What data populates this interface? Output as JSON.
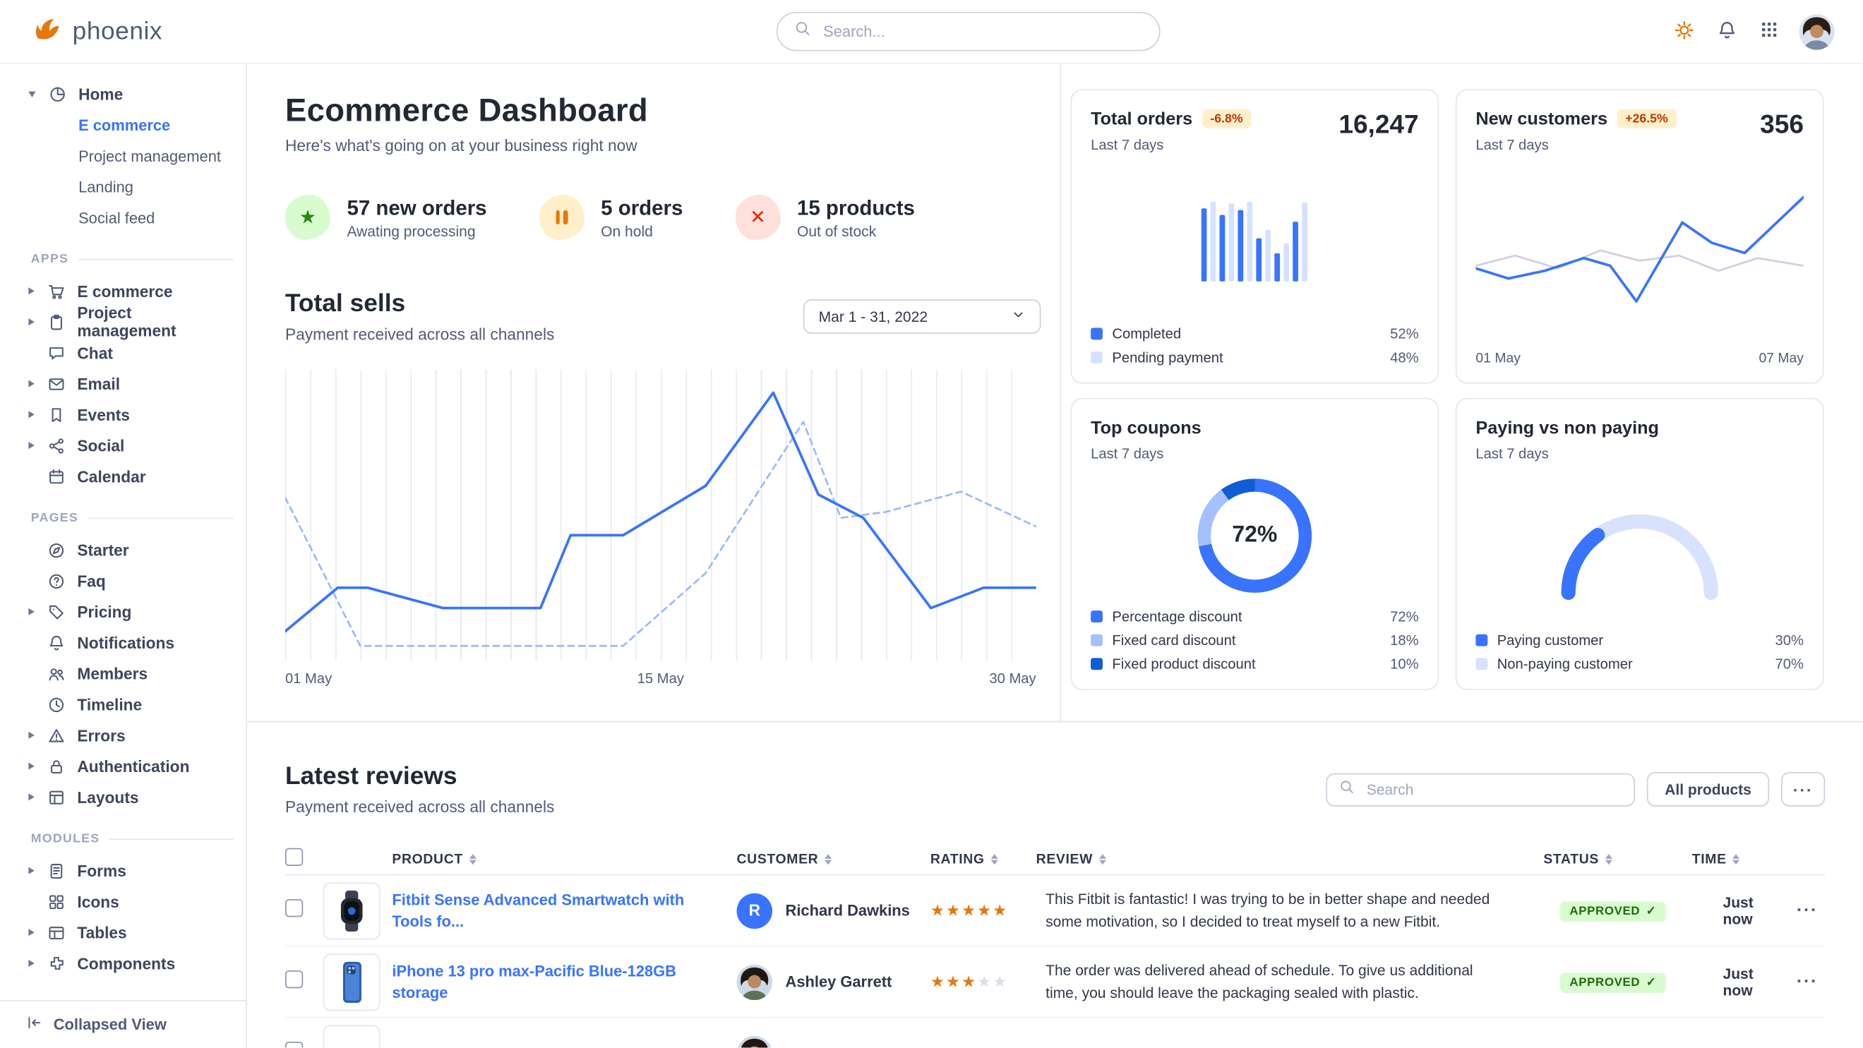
{
  "brand": {
    "name": "phoenix",
    "accent_color": "#3874ff"
  },
  "navbar": {
    "search_placeholder": "Search...",
    "icons": [
      "sun-icon",
      "bell-icon",
      "apps-grid-icon",
      "user-avatar"
    ]
  },
  "sidebar": {
    "collapsed_view": "Collapsed View",
    "sections": [
      {
        "label": "",
        "items": [
          {
            "label": "Home",
            "icon": "pie",
            "caret": "down",
            "children": [
              {
                "label": "E commerce",
                "active": true
              },
              {
                "label": "Project management"
              },
              {
                "label": "Landing"
              },
              {
                "label": "Social feed"
              }
            ]
          }
        ]
      },
      {
        "label": "APPS",
        "items": [
          {
            "label": "E commerce",
            "icon": "cart",
            "caret": "right"
          },
          {
            "label": "Project management",
            "icon": "clipboard",
            "caret": "right"
          },
          {
            "label": "Chat",
            "icon": "chat"
          },
          {
            "label": "Email",
            "icon": "mail",
            "caret": "right"
          },
          {
            "label": "Events",
            "icon": "bookmark",
            "caret": "right"
          },
          {
            "label": "Social",
            "icon": "share",
            "caret": "right"
          },
          {
            "label": "Calendar",
            "icon": "calendar"
          }
        ]
      },
      {
        "label": "PAGES",
        "items": [
          {
            "label": "Starter",
            "icon": "compass"
          },
          {
            "label": "Faq",
            "icon": "question"
          },
          {
            "label": "Pricing",
            "icon": "tag",
            "caret": "right"
          },
          {
            "label": "Notifications",
            "icon": "bell"
          },
          {
            "label": "Members",
            "icon": "users"
          },
          {
            "label": "Timeline",
            "icon": "clock"
          },
          {
            "label": "Errors",
            "icon": "warning",
            "caret": "right"
          },
          {
            "label": "Authentication",
            "icon": "lock",
            "caret": "right"
          },
          {
            "label": "Layouts",
            "icon": "layout",
            "caret": "right"
          }
        ]
      },
      {
        "label": "MODULES",
        "items": [
          {
            "label": "Forms",
            "icon": "forms",
            "caret": "right"
          },
          {
            "label": "Icons",
            "icon": "grid"
          },
          {
            "label": "Tables",
            "icon": "table",
            "caret": "right"
          },
          {
            "label": "Components",
            "icon": "puzzle",
            "caret": "right"
          }
        ]
      }
    ]
  },
  "main": {
    "title": "Ecommerce Dashboard",
    "subtitle": "Here's what's going on at your business right now",
    "stats": [
      {
        "value": "57 new orders",
        "label": "Awating processing",
        "icon": "star",
        "color": "green"
      },
      {
        "value": "5 orders",
        "label": "On hold",
        "icon": "pause",
        "color": "orange"
      },
      {
        "value": "15 products",
        "label": "Out of stock",
        "icon": "x",
        "color": "red"
      }
    ],
    "total_sells_title": "Total sells",
    "total_sells_subtitle": "Payment received across all channels",
    "date_range": "Mar 1 - 31, 2022"
  },
  "chart_data": [
    {
      "id": "total_sells",
      "type": "line",
      "title": "Total sells",
      "x_labels": [
        "01 May",
        "15 May",
        "30 May"
      ],
      "grid": "vertical",
      "ylim": [
        0,
        100
      ],
      "series": [
        {
          "name": "solid-line",
          "color": "#3874ff",
          "stroke_width": 2.2,
          "points": [
            [
              0,
              10
            ],
            [
              7,
              25
            ],
            [
              11,
              25
            ],
            [
              21,
              18
            ],
            [
              34,
              18
            ],
            [
              38,
              43
            ],
            [
              45,
              43
            ],
            [
              56,
              60
            ],
            [
              65,
              92
            ],
            [
              71,
              57
            ],
            [
              77,
              49
            ],
            [
              86,
              18
            ],
            [
              93,
              25
            ],
            [
              100,
              25
            ]
          ]
        },
        {
          "name": "dashed-line",
          "color": "#9ab9fa",
          "stroke_width": 1.6,
          "dashed": true,
          "points": [
            [
              0,
              56
            ],
            [
              10,
              5
            ],
            [
              45,
              5
            ],
            [
              56,
              30
            ],
            [
              69,
              82
            ],
            [
              74,
              49
            ],
            [
              80,
              51
            ],
            [
              90,
              58
            ],
            [
              100,
              46
            ]
          ]
        }
      ]
    },
    {
      "id": "total_orders",
      "type": "bar",
      "title": "Total orders",
      "change": "-6.8%",
      "period": "Last 7 days",
      "value": "16,247",
      "values": [
        88,
        96,
        80,
        94,
        86,
        96,
        52,
        62,
        34,
        46,
        72,
        95
      ],
      "colors": [
        "#3874ff",
        "#d5e2ff"
      ],
      "legend": [
        {
          "label": "Completed",
          "value": "52%",
          "color": "#3874ff"
        },
        {
          "label": "Pending payment",
          "value": "48%",
          "color": "#d5e2ff"
        }
      ]
    },
    {
      "id": "new_customers",
      "type": "line",
      "title": "New customers",
      "change": "+26.5%",
      "period": "Last 7 days",
      "value": "356",
      "x_labels": [
        "01 May",
        "07 May"
      ],
      "series": [
        {
          "name": "blue-line",
          "color": "#3874ff",
          "stroke_width": 2.2,
          "points": [
            [
              0,
              38
            ],
            [
              10,
              30
            ],
            [
              21,
              36
            ],
            [
              33,
              46
            ],
            [
              41,
              40
            ],
            [
              49,
              12
            ],
            [
              63,
              74
            ],
            [
              72,
              58
            ],
            [
              82,
              50
            ],
            [
              100,
              94
            ]
          ]
        },
        {
          "name": "gray-line",
          "color": "#cbd0dd",
          "stroke_width": 1.6,
          "points": [
            [
              0,
              40
            ],
            [
              12,
              48
            ],
            [
              25,
              38
            ],
            [
              38,
              52
            ],
            [
              50,
              44
            ],
            [
              62,
              48
            ],
            [
              74,
              36
            ],
            [
              86,
              46
            ],
            [
              100,
              40
            ]
          ]
        }
      ]
    },
    {
      "id": "top_coupons",
      "type": "donut",
      "title": "Top coupons",
      "period": "Last 7 days",
      "center_label": "72%",
      "segments": [
        {
          "label": "Percentage discount",
          "value": 72,
          "color": "#3874ff"
        },
        {
          "label": "Fixed card discount",
          "value": 18,
          "color": "#a4c0ff"
        },
        {
          "label": "Fixed product discount",
          "value": 10,
          "color": "#0f5ed6"
        }
      ]
    },
    {
      "id": "paying",
      "type": "gauge",
      "title": "Paying vs non paying",
      "period": "Last 7 days",
      "segments": [
        {
          "label": "Paying customer",
          "value": 30,
          "color": "#3874ff"
        },
        {
          "label": "Non-paying customer",
          "value": 70,
          "color": "#d9e2fc"
        }
      ]
    }
  ],
  "reviews": {
    "title": "Latest reviews",
    "subtitle": "Payment received across all channels",
    "search_placeholder": "Search",
    "filter_button": "All products",
    "more_button": "···",
    "row_menu": "···",
    "status_colors": {
      "approved_bg": "#d9fbd0",
      "approved_text": "#1c6c09"
    },
    "columns": [
      "PRODUCT",
      "CUSTOMER",
      "RATING",
      "REVIEW",
      "STATUS",
      "TIME"
    ],
    "rows": [
      {
        "image": "watch",
        "product": "Fitbit Sense Advanced Smartwatch with Tools fo...",
        "customer": "Richard Dawkins",
        "avatar_type": "initial",
        "avatar_text": "R",
        "rating": 5,
        "review": "This Fitbit is fantastic! I was trying to be in better shape and needed some motivation, so I decided to treat myself to a new Fitbit.",
        "status": "APPROVED",
        "time": "Just now"
      },
      {
        "image": "phone",
        "product": "iPhone 13 pro max-Pacific Blue-128GB storage",
        "customer": "Ashley Garrett",
        "avatar_type": "photo",
        "avatar_text": "A",
        "rating": 3,
        "review": "The order was delivered ahead of schedule. To give us additional time, you should leave the packaging sealed with plastic.",
        "status": "APPROVED",
        "time": "Just now"
      },
      {
        "image": "blank",
        "product": "",
        "customer": "",
        "avatar_type": "photo",
        "avatar_text": "",
        "rating": 0,
        "review": "",
        "status": "",
        "time": ""
      }
    ]
  }
}
